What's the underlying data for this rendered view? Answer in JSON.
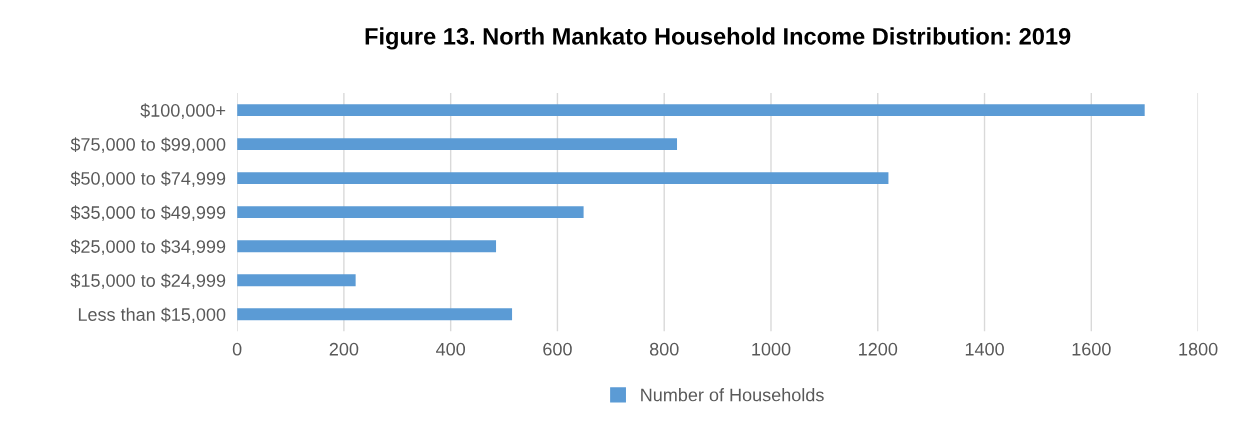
{
  "chart_data": {
    "type": "bar",
    "orientation": "horizontal",
    "title": "Figure 13. North Mankato Household Income Distribution: 2019",
    "categories": [
      "$100,000+",
      "$75,000 to $99,000",
      "$50,000 to $74,999",
      "$35,000 to $49,999",
      "$25,000 to $34,999",
      "$15,000 to $24,999",
      "Less than $15,000"
    ],
    "series": [
      {
        "name": "Number of Households",
        "color": "#5b9bd5",
        "values": [
          1700,
          824,
          1220,
          649,
          485,
          222,
          515
        ]
      }
    ],
    "xlim": [
      0,
      1800
    ],
    "xticks": [
      0,
      200,
      400,
      600,
      800,
      1000,
      1200,
      1400,
      1600,
      1800
    ],
    "grid": "x",
    "legend": "bottom"
  }
}
